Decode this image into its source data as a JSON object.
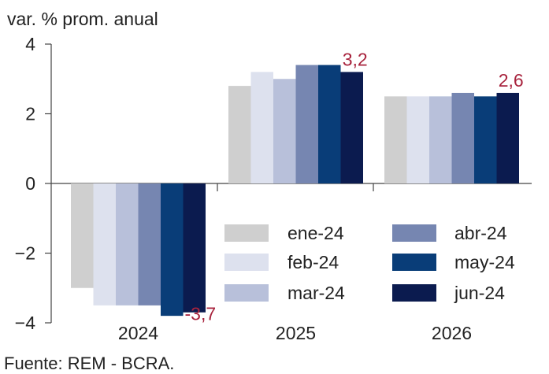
{
  "chart_data": {
    "type": "bar",
    "ylabel": "var. % prom. anual",
    "source": "Fuente: REM - BCRA.",
    "categories": [
      "2024",
      "2025",
      "2026"
    ],
    "ylim": [
      -4,
      4
    ],
    "yticks": [
      4,
      2,
      0,
      -2,
      -4
    ],
    "ytick_labels": [
      "4",
      "2",
      "0",
      "−2",
      "−4"
    ],
    "grid": false,
    "legend_position": "bottom-right",
    "series": [
      {
        "name": "ene-24",
        "color": "#cfcfcf",
        "values": [
          -3.0,
          2.8,
          2.5
        ]
      },
      {
        "name": "feb-24",
        "color": "#dde1ee",
        "values": [
          -3.5,
          3.2,
          2.5
        ]
      },
      {
        "name": "mar-24",
        "color": "#b8c0da",
        "values": [
          -3.5,
          3.0,
          2.5
        ]
      },
      {
        "name": "abr-24",
        "color": "#7686b1",
        "values": [
          -3.5,
          3.4,
          2.6
        ]
      },
      {
        "name": "may-24",
        "color": "#093d78",
        "values": [
          -3.8,
          3.4,
          2.5
        ]
      },
      {
        "name": "jun-24",
        "color": "#0b1b4f",
        "values": [
          -3.7,
          3.2,
          2.6
        ]
      }
    ],
    "annotations": [
      {
        "text": "-3,7",
        "series": "jun-24",
        "category": "2024",
        "color": "#a8233d"
      },
      {
        "text": "3,2",
        "series": "jun-24",
        "category": "2025",
        "color": "#a8233d"
      },
      {
        "text": "2,6",
        "series": "jun-24",
        "category": "2026",
        "color": "#a8233d"
      }
    ]
  }
}
